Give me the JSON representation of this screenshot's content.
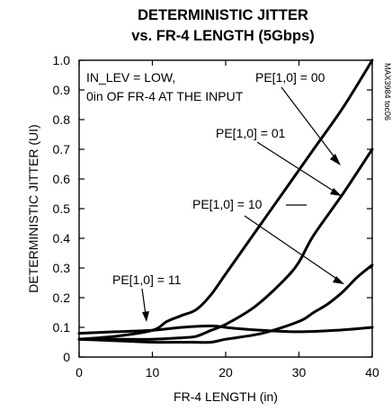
{
  "chart_data": {
    "type": "line",
    "title": [
      "DETERMINISTIC JITTER",
      "vs. FR-4 LENGTH (5Gbps)"
    ],
    "xlabel": "FR-4 LENGTH (in)",
    "ylabel": "DETERMINISTIC JITTER (UI)",
    "xlim": [
      0,
      40
    ],
    "ylim": [
      0,
      1.0
    ],
    "xticks": [
      "0",
      "10",
      "20",
      "30",
      "40"
    ],
    "yticks": [
      "0",
      "0.1",
      "0.2",
      "0.3",
      "0.4",
      "0.5",
      "0.6",
      "0.7",
      "0.8",
      "0.9",
      "1.0"
    ],
    "grid": false,
    "conditions": [
      "IN_LEV = LOW,",
      "0in OF FR-4 AT THE INPUT"
    ],
    "part_number": "MAX3984 toc06",
    "series": [
      {
        "name": "PE[1,0] = 00",
        "x": [
          0,
          5,
          10,
          12,
          14,
          16,
          18,
          20,
          24,
          28,
          32,
          36,
          40
        ],
        "y": [
          0.06,
          0.07,
          0.09,
          0.12,
          0.14,
          0.16,
          0.21,
          0.28,
          0.42,
          0.56,
          0.7,
          0.84,
          1.0
        ]
      },
      {
        "name": "PE[1,0] = 01",
        "x": [
          0,
          5,
          10,
          14,
          16,
          18,
          20,
          24,
          28,
          30,
          32,
          36,
          40
        ],
        "y": [
          0.06,
          0.06,
          0.06,
          0.065,
          0.07,
          0.09,
          0.11,
          0.17,
          0.26,
          0.32,
          0.41,
          0.55,
          0.7
        ]
      },
      {
        "name": "PE[1,0] = 10",
        "x": [
          0,
          5,
          10,
          15,
          18,
          20,
          25,
          30,
          32,
          34,
          36,
          38,
          40
        ],
        "y": [
          0.06,
          0.055,
          0.05,
          0.05,
          0.05,
          0.06,
          0.08,
          0.12,
          0.15,
          0.18,
          0.22,
          0.27,
          0.31
        ]
      },
      {
        "name": "PE[1,0] = 11",
        "x": [
          0,
          5,
          10,
          14,
          18,
          20,
          22,
          25,
          30,
          35,
          40
        ],
        "y": [
          0.08,
          0.085,
          0.09,
          0.1,
          0.105,
          0.1,
          0.095,
          0.09,
          0.085,
          0.09,
          0.1
        ]
      }
    ]
  }
}
